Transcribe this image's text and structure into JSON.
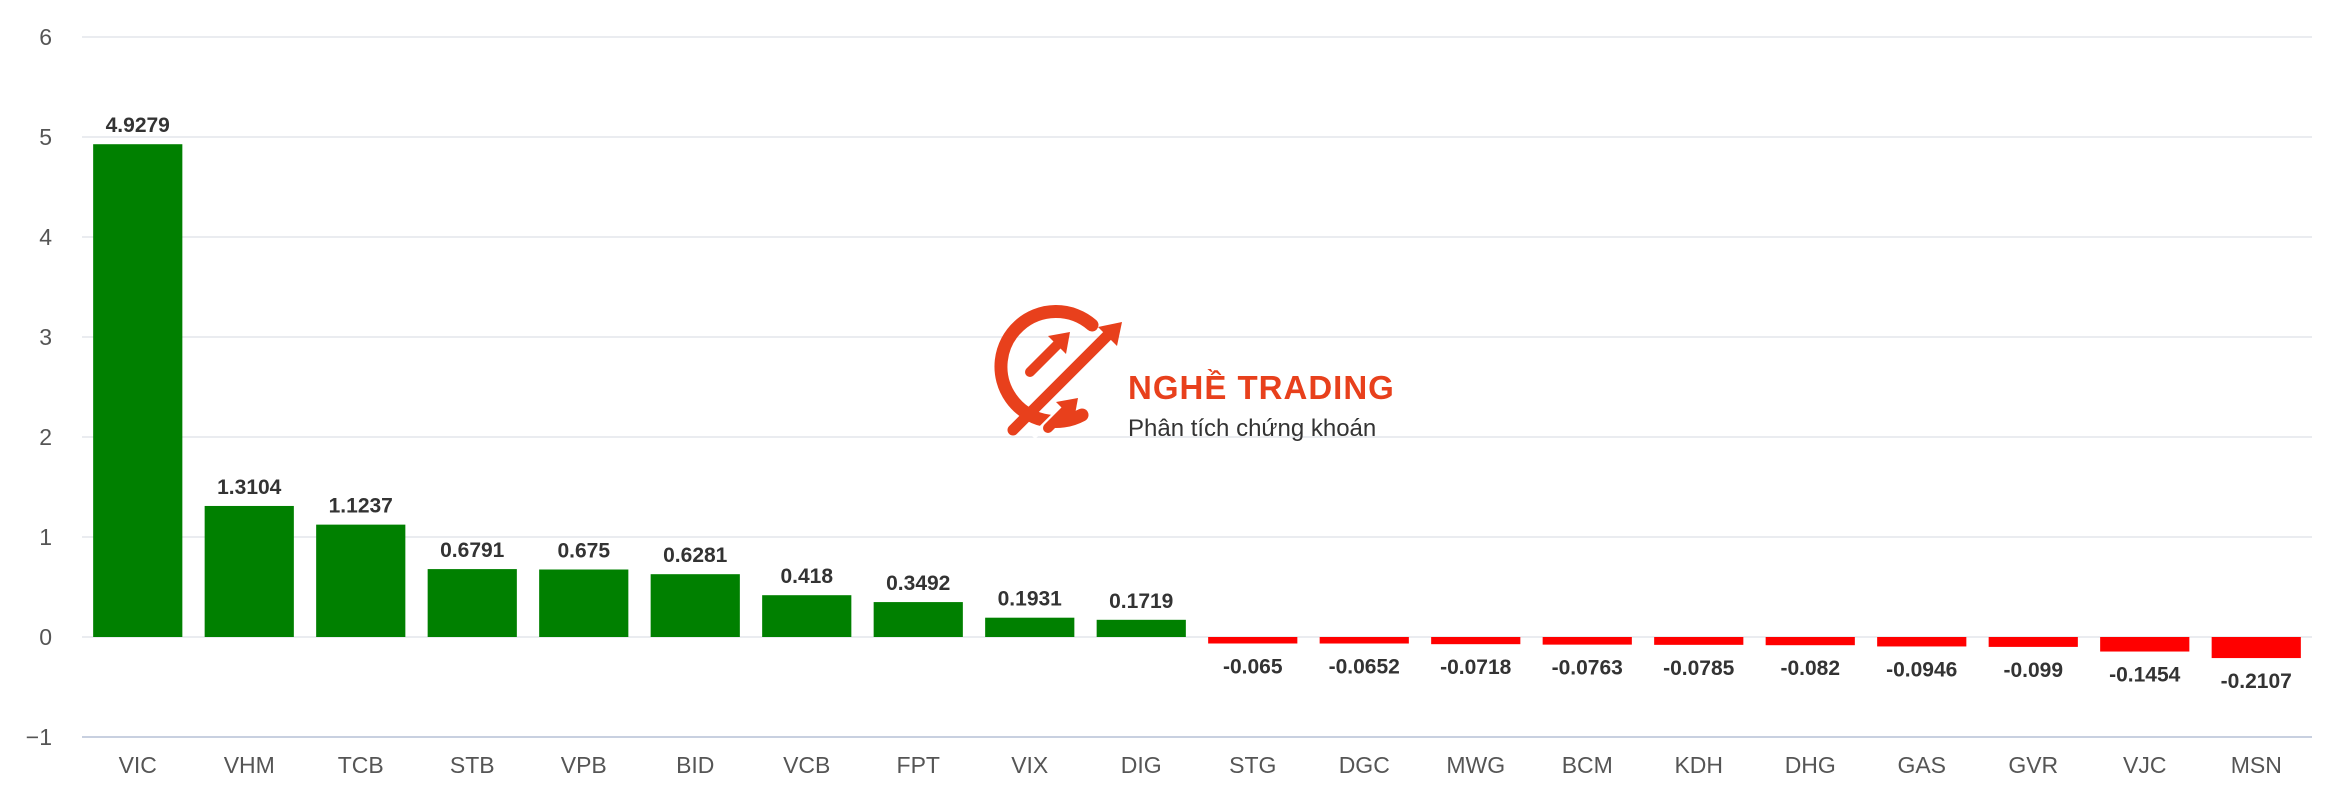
{
  "chart_data": {
    "type": "bar",
    "categories": [
      "VIC",
      "VHM",
      "TCB",
      "STB",
      "VPB",
      "BID",
      "VCB",
      "FPT",
      "VIX",
      "DIG",
      "STG",
      "DGC",
      "MWG",
      "BCM",
      "KDH",
      "DHG",
      "GAS",
      "GVR",
      "VJC",
      "MSN"
    ],
    "values": [
      4.9279,
      1.3104,
      1.1237,
      0.6791,
      0.675,
      0.6281,
      0.418,
      0.3492,
      0.1931,
      0.1719,
      -0.065,
      -0.0652,
      -0.0718,
      -0.0763,
      -0.0785,
      -0.082,
      -0.0946,
      -0.099,
      -0.1454,
      -0.2107
    ],
    "value_labels": [
      "4.9279",
      "1.3104",
      "1.1237",
      "0.6791",
      "0.675",
      "0.6281",
      "0.418",
      "0.3492",
      "0.1931",
      "0.1719",
      "-0.065",
      "-0.0652",
      "-0.0718",
      "-0.0763",
      "-0.0785",
      "-0.082",
      "-0.0946",
      "-0.099",
      "-0.1454",
      "-0.2107"
    ],
    "yticks": [
      -1,
      0,
      1,
      2,
      3,
      4,
      5,
      6
    ],
    "ytick_labels": [
      "−1",
      "0",
      "1",
      "2",
      "3",
      "4",
      "5",
      "6"
    ],
    "ylim": [
      -1,
      6
    ],
    "title": "",
    "xlabel": "",
    "ylabel": "",
    "grid": true,
    "legend": "none",
    "colors": {
      "positive": "#008000",
      "negative": "#ff0000"
    }
  },
  "watermark": {
    "title": "NGHỀ TRADING",
    "subtitle": "Phân tích chứng khoán",
    "logo_icon": "trading-arrows-logo-icon",
    "color": "#e8401c"
  }
}
